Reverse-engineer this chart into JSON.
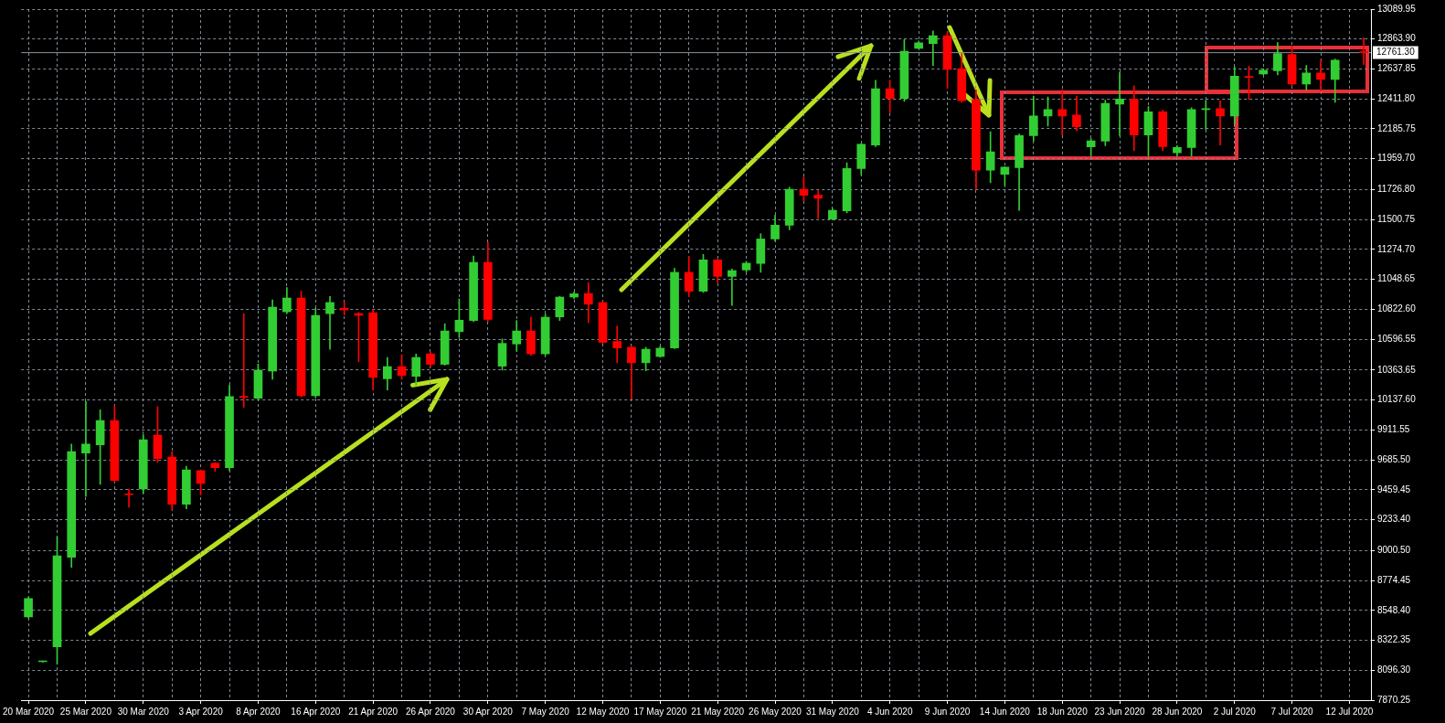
{
  "chart_data": {
    "type": "candlestick",
    "categories": [
      "20 Mar 2020",
      null,
      null,
      null,
      "25 Mar 2020",
      null,
      null,
      null,
      "30 Mar 2020",
      null,
      null,
      null,
      "3 Apr 2020",
      null,
      null,
      null,
      "8 Apr 2020",
      null,
      null,
      null,
      "16 Apr 2020",
      null,
      null,
      null,
      "21 Apr 2020",
      null,
      null,
      null,
      "26 Apr 2020",
      null,
      null,
      null,
      "30 Apr 2020",
      null,
      null,
      null,
      "7 May 2020",
      null,
      null,
      null,
      "12 May 2020",
      null,
      null,
      null,
      "17 May 2020",
      null,
      null,
      null,
      "21 May 2020",
      null,
      null,
      null,
      "26 May 2020",
      null,
      null,
      null,
      "31 May 2020",
      null,
      null,
      null,
      "4 Jun 2020",
      null,
      null,
      null,
      "9 Jun 2020",
      null,
      null,
      null,
      "14 Jun 2020",
      null,
      null,
      null,
      "18 Jun 2020",
      null,
      null,
      null,
      "23 Jun 2020",
      null,
      null,
      null,
      "28 Jun 2020",
      null,
      null,
      null,
      "2 Jul 2020",
      null,
      null,
      null,
      "7 Jul 2020",
      null,
      null,
      null,
      "12 Jul 2020",
      null
    ],
    "ohlc": [
      [
        8499,
        8650,
        8490,
        8637
      ],
      [
        8160,
        8166,
        8158,
        8165
      ],
      [
        8273,
        9104,
        8142,
        8961
      ],
      [
        8950,
        9804,
        8874,
        9748
      ],
      [
        9737,
        10126,
        9408,
        9804
      ],
      [
        9799,
        10064,
        9500,
        9983
      ],
      [
        9983,
        10094,
        9520,
        9529
      ],
      [
        9428,
        9465,
        9327,
        9422
      ],
      [
        9465,
        9875,
        9431,
        9838
      ],
      [
        9872,
        10087,
        9666,
        9695
      ],
      [
        9707,
        9748,
        9309,
        9350
      ],
      [
        9350,
        9638,
        9316,
        9610
      ],
      [
        9604,
        9610,
        9419,
        9507
      ],
      [
        9659,
        9665,
        9598,
        9626
      ],
      [
        9626,
        10250,
        9604,
        10163
      ],
      [
        10165,
        10790,
        10082,
        10158
      ],
      [
        10151,
        10409,
        10144,
        10363
      ],
      [
        10356,
        10894,
        10294,
        10839
      ],
      [
        10804,
        10987,
        10790,
        10908
      ],
      [
        10908,
        10960,
        10160,
        10170
      ],
      [
        10170,
        10830,
        10156,
        10777
      ],
      [
        10790,
        10920,
        10520,
        10874
      ],
      [
        10830,
        10880,
        10780,
        10818
      ],
      [
        10790,
        10800,
        10427,
        10777
      ],
      [
        10797,
        10820,
        10211,
        10308
      ],
      [
        10298,
        10459,
        10213,
        10390
      ],
      [
        10390,
        10480,
        10294,
        10323
      ],
      [
        10316,
        10485,
        10247,
        10459
      ],
      [
        10486,
        10500,
        10390,
        10407
      ],
      [
        10407,
        10713,
        10400,
        10659
      ],
      [
        10654,
        10901,
        10609,
        10740
      ],
      [
        10738,
        11226,
        10729,
        11177
      ],
      [
        11177,
        11329,
        10729,
        10746
      ],
      [
        10393,
        10598,
        10363,
        10565
      ],
      [
        10561,
        10738,
        10506,
        10659
      ],
      [
        10659,
        10763,
        10473,
        10486
      ],
      [
        10486,
        10787,
        10473,
        10763
      ],
      [
        10765,
        10920,
        10738,
        10915
      ],
      [
        10915,
        10954,
        10901,
        10940
      ],
      [
        10942,
        11023,
        10722,
        10861
      ],
      [
        10874,
        10880,
        10565,
        10573
      ],
      [
        10580,
        10696,
        10419,
        10531
      ],
      [
        10536,
        10545,
        10146,
        10419
      ],
      [
        10419,
        10536,
        10358,
        10521
      ],
      [
        10466,
        10545,
        10460,
        10529
      ],
      [
        10531,
        11132,
        10525,
        11102
      ],
      [
        11102,
        11221,
        10918,
        10959
      ],
      [
        10959,
        11238,
        10950,
        11196
      ],
      [
        11196,
        11200,
        11023,
        11071
      ],
      [
        11071,
        11127,
        10851,
        11115
      ],
      [
        11120,
        11185,
        11105,
        11171
      ],
      [
        11169,
        11393,
        11102,
        11354
      ],
      [
        11354,
        11534,
        11336,
        11458
      ],
      [
        11458,
        11744,
        11423,
        11729
      ],
      [
        11729,
        11822,
        11640,
        11684
      ],
      [
        11684,
        11719,
        11509,
        11662
      ],
      [
        11505,
        11584,
        11500,
        11571
      ],
      [
        11566,
        11929,
        11551,
        11886
      ],
      [
        11885,
        12075,
        11838,
        12069
      ],
      [
        12064,
        12552,
        12052,
        12488
      ],
      [
        12488,
        12552,
        12307,
        12416
      ],
      [
        12416,
        12859,
        12393,
        12771
      ],
      [
        12794,
        12849,
        12790,
        12835
      ],
      [
        12830,
        12926,
        12664,
        12890
      ],
      [
        12890,
        12921,
        12492,
        12635
      ],
      [
        12640,
        12754,
        12386,
        12398
      ],
      [
        12407,
        12480,
        11731,
        11873
      ],
      [
        11873,
        12164,
        11778,
        12012
      ],
      [
        11842,
        11900,
        11759,
        11897
      ],
      [
        11892,
        12147,
        11569,
        12135
      ],
      [
        12135,
        12433,
        12092,
        12283
      ],
      [
        12283,
        12426,
        12207,
        12331
      ],
      [
        12331,
        12480,
        12140,
        12283
      ],
      [
        12290,
        12433,
        12171,
        12202
      ],
      [
        12049,
        12112,
        11981,
        12095
      ],
      [
        12092,
        12402,
        12059,
        12378
      ],
      [
        12373,
        12612,
        12135,
        12411
      ],
      [
        12411,
        12511,
        12021,
        12140
      ],
      [
        12140,
        12354,
        11981,
        12314
      ],
      [
        12314,
        12326,
        12021,
        12052
      ],
      [
        12005,
        12059,
        11981,
        12045
      ],
      [
        12045,
        12345,
        11981,
        12331
      ],
      [
        12331,
        12402,
        12179,
        12338
      ],
      [
        12338,
        12397,
        12064,
        12283
      ],
      [
        12283,
        12654,
        12219,
        12583
      ],
      [
        12580,
        12660,
        12409,
        12575
      ],
      [
        12601,
        12640,
        12595,
        12629
      ],
      [
        12625,
        12838,
        12594,
        12754
      ],
      [
        12747,
        12810,
        12510,
        12524
      ],
      [
        12524,
        12664,
        12479,
        12608
      ],
      [
        12608,
        12705,
        12475,
        12559
      ],
      [
        12559,
        12713,
        12386,
        12705
      ],
      null,
      [
        12768,
        12873,
        12671,
        12761.3
      ]
    ],
    "colors": [
      "#32cd32",
      "#32cd32",
      "#32cd32",
      "#32cd32",
      "#32cd32",
      "#32cd32",
      "#ff0000",
      "#ff0000",
      "#32cd32",
      "#ff0000",
      "#ff0000",
      "#32cd32",
      "#ff0000",
      "#ff0000",
      "#32cd32",
      "#ff0000",
      "#32cd32",
      "#32cd32",
      "#32cd32",
      "#ff0000",
      "#32cd32",
      "#32cd32",
      "#ff0000",
      "#ff0000",
      "#ff0000",
      "#32cd32",
      "#ff0000",
      "#32cd32",
      "#ff0000",
      "#32cd32",
      "#32cd32",
      "#32cd32",
      "#ff0000",
      "#32cd32",
      "#32cd32",
      "#ff0000",
      "#32cd32",
      "#32cd32",
      "#32cd32",
      "#ff0000",
      "#ff0000",
      "#ff0000",
      "#ff0000",
      "#32cd32",
      "#32cd32",
      "#32cd32",
      "#ff0000",
      "#32cd32",
      "#ff0000",
      "#32cd32",
      "#32cd32",
      "#32cd32",
      "#32cd32",
      "#32cd32",
      "#ff0000",
      "#ff0000",
      "#32cd32",
      "#32cd32",
      "#32cd32",
      "#32cd32",
      "#ff0000",
      "#32cd32",
      "#32cd32",
      "#32cd32",
      "#ff0000",
      "#ff0000",
      "#ff0000",
      "#32cd32",
      "#32cd32",
      "#32cd32",
      "#32cd32",
      "#32cd32",
      "#ff0000",
      "#ff0000",
      "#32cd32",
      "#32cd32",
      "#32cd32",
      "#ff0000",
      "#32cd32",
      "#ff0000",
      "#32cd32",
      "#32cd32",
      "#32cd32",
      "#ff0000",
      "#32cd32",
      "#ff0000",
      "#32cd32",
      "#32cd32",
      "#ff0000",
      "#32cd32",
      "#ff0000",
      "#32cd32",
      null,
      "#ff0000"
    ],
    "ylim": [
      7870.25,
      13089.95
    ],
    "yticks": [
      7870.25,
      {
        "value": 8096.3,
        "label": "8096.30"
      },
      8322.35,
      {
        "value": 8548.4,
        "label": "8548.40"
      },
      8774.45,
      {
        "value": 9000.5,
        "label": "9000.50"
      },
      {
        "value": 9233.4,
        "label": "9233.40"
      },
      9459.45,
      {
        "value": 9685.5,
        "label": "9685.50"
      },
      9911.55,
      {
        "value": 10137.6,
        "label": "10137.60"
      },
      10363.65,
      10596.55,
      {
        "value": 10822.6,
        "label": "10822.60"
      },
      11048.65,
      {
        "value": 11274.7,
        "label": "11274.70"
      },
      11500.75,
      {
        "value": 11726.8,
        "label": "11726.80"
      },
      {
        "value": 11959.7,
        "label": "11959.70"
      },
      12185.75,
      {
        "value": 12411.8,
        "label": "12411.80"
      },
      12637.85,
      {
        "value": 12863.9,
        "label": "12863.90"
      },
      13089.95
    ],
    "ref_lines": [
      {
        "axis": "y",
        "value": 12761.3,
        "label": "12761.30",
        "color": "#8a929c"
      }
    ],
    "grid": true,
    "legend": false
  }
}
